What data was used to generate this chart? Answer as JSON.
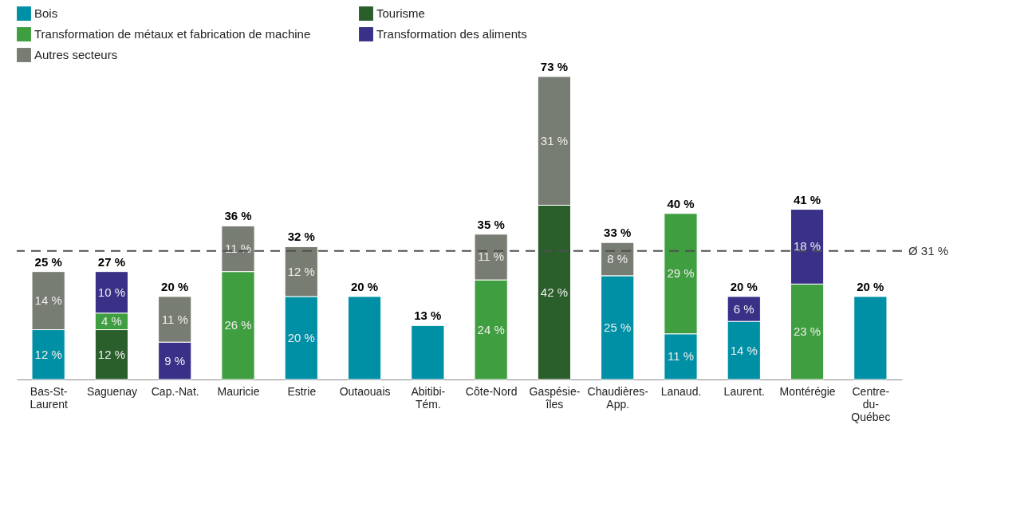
{
  "chart_data": {
    "type": "bar",
    "stacked": true,
    "data_labels": false,
    "legend": "top left",
    "grid": false,
    "categories": [
      "Bas-St-Laurent",
      "Saguenay",
      "Cap.-Nat.",
      "Mauricie",
      "Estrie",
      "Outaouais",
      "Abitibi-Tém.",
      "Côte-Nord",
      "Gaspésie-îles",
      "Chaudières-App.",
      "Lanaud.",
      "Laurent.",
      "Montérégie",
      "Centre-du-Québec"
    ],
    "series": [
      {
        "name": "Bois",
        "color": "#0090a6",
        "values": [
          12,
          null,
          null,
          null,
          20,
          20,
          13,
          null,
          null,
          25,
          11,
          14,
          null,
          20
        ],
        "value_labels": [
          "12 %",
          null,
          null,
          null,
          "20 %",
          null,
          null,
          null,
          null,
          "25 %",
          "11 %",
          "14 %",
          null,
          null
        ]
      },
      {
        "name": "Tourisme",
        "color": "#2a5e2a",
        "values": [
          null,
          12,
          null,
          null,
          null,
          null,
          null,
          null,
          42,
          null,
          null,
          null,
          null,
          null
        ],
        "value_labels": [
          null,
          "12 %",
          null,
          null,
          null,
          null,
          null,
          null,
          "42 %",
          null,
          null,
          null,
          null,
          null
        ]
      },
      {
        "name": "Transformation de métaux et fabrication de machine",
        "color": "#3f9e3f",
        "values": [
          null,
          4,
          null,
          26,
          null,
          null,
          null,
          24,
          null,
          null,
          29,
          null,
          23,
          null
        ],
        "value_labels": [
          null,
          "4 %",
          null,
          "26 %",
          null,
          null,
          null,
          "24 %",
          null,
          null,
          "29 %",
          null,
          "23 %",
          null
        ]
      },
      {
        "name": "Transformation des aliments",
        "color": "#393188",
        "values": [
          null,
          10,
          9,
          null,
          null,
          null,
          null,
          null,
          null,
          null,
          null,
          6,
          18,
          null
        ],
        "value_labels": [
          null,
          "10 %",
          "9 %",
          null,
          null,
          null,
          null,
          null,
          null,
          null,
          null,
          "6 %",
          "18 %",
          null
        ]
      },
      {
        "name": "Autres secteurs",
        "color": "#787d73",
        "values": [
          14,
          null,
          11,
          11,
          12,
          null,
          null,
          11,
          31,
          8,
          null,
          null,
          null,
          null
        ],
        "value_labels": [
          "14 %",
          null,
          "11 %",
          "11 %",
          "12 %",
          null,
          null,
          "11 %",
          "31 %",
          "8 %",
          null,
          null,
          null,
          null
        ]
      }
    ],
    "totals": [
      "25 %",
      "27 %",
      "20 %",
      "36 %",
      "32 %",
      "20 %",
      "13 %",
      "35 %",
      "73 %",
      "33 %",
      "40 %",
      "20 %",
      "41 %",
      "20 %"
    ],
    "ref_lines": [
      {
        "axis": "y",
        "value": 31,
        "label": "Ø 31 %",
        "color": "#505050",
        "line_style": "dashed"
      }
    ]
  }
}
